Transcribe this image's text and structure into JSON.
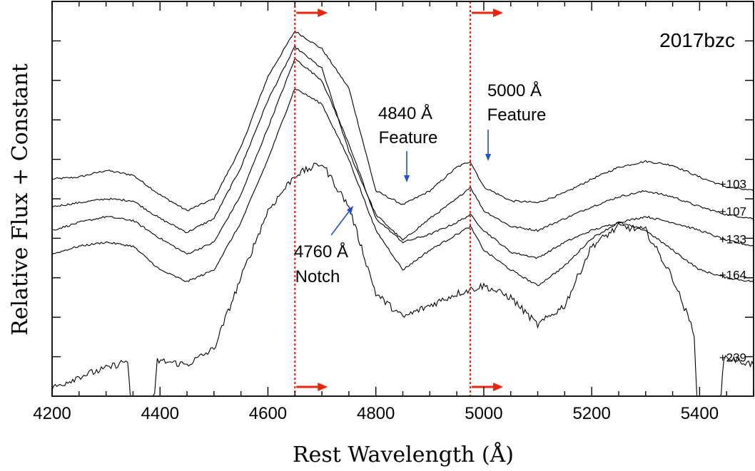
{
  "chart_data": {
    "type": "line",
    "title": "2017bzc",
    "xlabel": "Rest Wavelength (Å)",
    "ylabel": "Relative Flux + Constant",
    "xlim": [
      4200,
      5500
    ],
    "ylim": [
      0,
      10
    ],
    "xticks": [
      4200,
      4400,
      4600,
      4800,
      5000,
      5200,
      5400
    ],
    "xtick_labels": [
      "4200",
      "4400",
      "4600",
      "4800",
      "5000",
      "5200",
      "5400"
    ],
    "yticks_unlabeled": [
      1,
      2,
      3,
      4,
      5,
      6,
      7,
      8,
      9
    ],
    "grid": false,
    "colors": {
      "spectra": "#000000",
      "marker_lines": "#e8260c",
      "arrows_red": "#e8260c",
      "arrows_blue": "#1f4fd8"
    },
    "vertical_markers": [
      4650,
      4975
    ],
    "series": [
      {
        "name": "+103",
        "x": [
          4200,
          4250,
          4300,
          4350,
          4400,
          4450,
          4500,
          4550,
          4600,
          4650,
          4700,
          4750,
          4800,
          4850,
          4900,
          4950,
          4975,
          5000,
          5050,
          5100,
          5150,
          5200,
          5250,
          5300,
          5350,
          5400,
          5450,
          5500
        ],
        "y": [
          5.5,
          5.55,
          5.72,
          5.6,
          5.1,
          4.7,
          5.0,
          6.3,
          8.1,
          9.25,
          8.8,
          7.8,
          5.2,
          4.85,
          5.2,
          5.8,
          5.95,
          5.3,
          4.95,
          4.9,
          5.15,
          5.5,
          5.8,
          5.95,
          5.85,
          5.55,
          5.3,
          5.2
        ]
      },
      {
        "name": "+107",
        "x": [
          4200,
          4250,
          4300,
          4350,
          4400,
          4450,
          4500,
          4550,
          4600,
          4650,
          4700,
          4750,
          4800,
          4850,
          4900,
          4950,
          4975,
          5000,
          5050,
          5100,
          5150,
          5200,
          5250,
          5300,
          5350,
          5400,
          5450,
          5500
        ],
        "y": [
          4.8,
          4.9,
          5.0,
          4.95,
          4.5,
          4.15,
          4.5,
          5.8,
          7.5,
          8.85,
          8.3,
          6.2,
          4.6,
          3.95,
          4.5,
          5.0,
          5.3,
          4.7,
          4.3,
          4.2,
          4.5,
          4.8,
          5.05,
          5.2,
          5.05,
          4.8,
          4.6,
          4.5
        ]
      },
      {
        "name": "+133",
        "x": [
          4200,
          4250,
          4300,
          4350,
          4400,
          4450,
          4500,
          4550,
          4600,
          4650,
          4700,
          4750,
          4800,
          4850,
          4900,
          4950,
          4975,
          5000,
          5050,
          5100,
          5150,
          5200,
          5250,
          5300,
          5350,
          5400,
          5450,
          5500
        ],
        "y": [
          4.2,
          4.4,
          4.55,
          4.45,
          4.0,
          3.6,
          3.9,
          5.1,
          6.8,
          8.55,
          8.0,
          6.4,
          4.5,
          3.9,
          4.1,
          4.4,
          4.6,
          4.2,
          3.65,
          3.5,
          3.9,
          4.2,
          4.4,
          4.55,
          4.4,
          4.2,
          3.95,
          3.8
        ]
      },
      {
        "name": "+164",
        "x": [
          4200,
          4250,
          4300,
          4350,
          4400,
          4450,
          4500,
          4550,
          4600,
          4650,
          4700,
          4750,
          4800,
          4850,
          4900,
          4950,
          4975,
          5000,
          5050,
          5100,
          5150,
          5200,
          5250,
          5300,
          5350,
          5400,
          5450,
          5500
        ],
        "y": [
          3.6,
          3.8,
          3.9,
          3.8,
          3.2,
          2.9,
          3.2,
          4.4,
          6.0,
          7.8,
          7.4,
          6.0,
          4.2,
          3.2,
          3.7,
          4.1,
          4.3,
          3.7,
          3.2,
          2.8,
          3.3,
          4.0,
          4.4,
          4.2,
          3.7,
          3.2,
          3.0,
          2.9
        ]
      },
      {
        "name": "+239",
        "x": [
          4200,
          4250,
          4300,
          4340,
          4345,
          4390,
          4395,
          4450,
          4500,
          4550,
          4600,
          4650,
          4700,
          4750,
          4800,
          4850,
          4900,
          4950,
          5000,
          5050,
          5100,
          5150,
          5200,
          5250,
          5300,
          5350,
          5390,
          5395,
          5440,
          5445,
          5500
        ],
        "y": [
          0.2,
          0.5,
          0.7,
          0.9,
          0.0,
          0.0,
          0.9,
          0.8,
          1.2,
          3.0,
          4.7,
          5.6,
          5.9,
          4.8,
          2.6,
          2.0,
          2.3,
          2.6,
          2.8,
          2.5,
          1.8,
          2.3,
          3.8,
          4.3,
          4.2,
          3.0,
          1.6,
          0.0,
          0.0,
          1.0,
          0.8
        ]
      }
    ],
    "annotations": [
      {
        "text": "4840 Å",
        "line2": "Feature"
      },
      {
        "text": "5000 Å",
        "line2": "Feature"
      },
      {
        "text": "4760 Å",
        "line2": "Notch"
      }
    ]
  }
}
